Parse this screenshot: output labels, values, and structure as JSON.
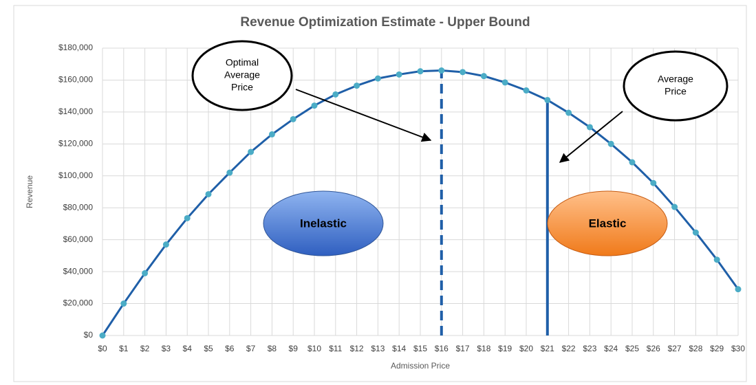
{
  "chart_data": {
    "type": "line",
    "title": "Revenue Optimization Estimate - Upper Bound",
    "xlabel": "Admission Price",
    "ylabel": "Revenue",
    "x": [
      0,
      1,
      2,
      3,
      4,
      5,
      6,
      7,
      8,
      9,
      10,
      11,
      12,
      13,
      14,
      15,
      16,
      17,
      18,
      19,
      20,
      21,
      22,
      23,
      24,
      25,
      26,
      27,
      28,
      29,
      30
    ],
    "series": [
      {
        "color": "#1f5fa8",
        "marker_color": "#4bacc6",
        "values": [
          0,
          20000,
          39000,
          57000,
          73500,
          88500,
          102000,
          115000,
          126000,
          135500,
          144000,
          151000,
          156500,
          161000,
          163500,
          165500,
          166000,
          165000,
          162500,
          158500,
          153500,
          147500,
          139500,
          130500,
          120000,
          108500,
          95500,
          80500,
          64500,
          47500,
          29000
        ]
      }
    ],
    "xlim": [
      0,
      30
    ],
    "xticks": [
      {
        "value": 0,
        "label": "$0"
      },
      {
        "value": 1,
        "label": "$1"
      },
      {
        "value": 2,
        "label": "$2"
      },
      {
        "value": 3,
        "label": "$3"
      },
      {
        "value": 4,
        "label": "$4"
      },
      {
        "value": 5,
        "label": "$5"
      },
      {
        "value": 6,
        "label": "$6"
      },
      {
        "value": 7,
        "label": "$7"
      },
      {
        "value": 8,
        "label": "$8"
      },
      {
        "value": 9,
        "label": "$9"
      },
      {
        "value": 10,
        "label": "$10"
      },
      {
        "value": 11,
        "label": "$11"
      },
      {
        "value": 12,
        "label": "$12"
      },
      {
        "value": 13,
        "label": "$13"
      },
      {
        "value": 14,
        "label": "$14"
      },
      {
        "value": 15,
        "label": "$15"
      },
      {
        "value": 16,
        "label": "$16"
      },
      {
        "value": 17,
        "label": "$17"
      },
      {
        "value": 18,
        "label": "$18"
      },
      {
        "value": 19,
        "label": "$19"
      },
      {
        "value": 20,
        "label": "$20"
      },
      {
        "value": 21,
        "label": "$21"
      },
      {
        "value": 22,
        "label": "$22"
      },
      {
        "value": 23,
        "label": "$23"
      },
      {
        "value": 24,
        "label": "$24"
      },
      {
        "value": 25,
        "label": "$25"
      },
      {
        "value": 26,
        "label": "$26"
      },
      {
        "value": 27,
        "label": "$27"
      },
      {
        "value": 28,
        "label": "$28"
      },
      {
        "value": 29,
        "label": "$29"
      },
      {
        "value": 30,
        "label": "$30"
      }
    ],
    "ylim": [
      0,
      180000
    ],
    "yticks": [
      {
        "value": 0,
        "label": "$0"
      },
      {
        "value": 20000,
        "label": "$20,000"
      },
      {
        "value": 40000,
        "label": "$40,000"
      },
      {
        "value": 60000,
        "label": "$60,000"
      },
      {
        "value": 80000,
        "label": "$80,000"
      },
      {
        "value": 100000,
        "label": "$100,000"
      },
      {
        "value": 120000,
        "label": "$120,000"
      },
      {
        "value": 140000,
        "label": "$140,000"
      },
      {
        "value": 160000,
        "label": "$160,000"
      },
      {
        "value": 180000,
        "label": "$180,000"
      }
    ],
    "grid": true,
    "reference_lines": [
      {
        "x": 16,
        "style": "dashed"
      },
      {
        "x": 21,
        "style": "solid"
      }
    ],
    "annotations": [
      {
        "lines": [
          "Optimal",
          "Average",
          "Price"
        ]
      },
      {
        "lines": [
          "Average",
          "Price"
        ]
      },
      {
        "lines": [
          "Inelastic"
        ]
      },
      {
        "lines": [
          "Elastic"
        ]
      }
    ]
  }
}
